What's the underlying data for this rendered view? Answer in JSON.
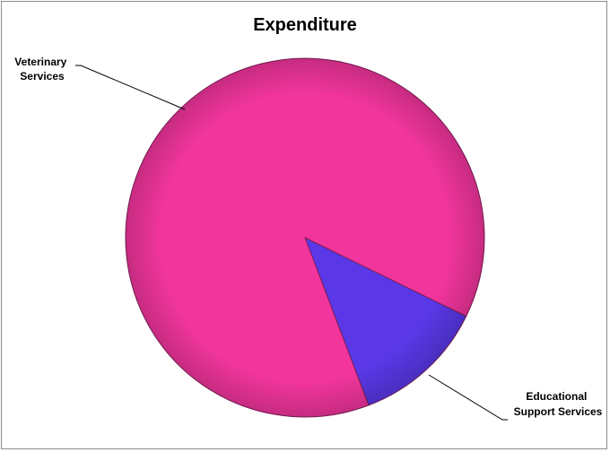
{
  "chart_data": {
    "type": "pie",
    "title": "Expenditure",
    "slices": [
      {
        "label_lines": [
          "Educational",
          "Support Services"
        ],
        "value": 12,
        "color": "#5a38e8"
      },
      {
        "label_lines": [
          "Veterinary",
          "Services"
        ],
        "value": 88,
        "color": "#f2359d"
      }
    ],
    "legend": "none"
  }
}
